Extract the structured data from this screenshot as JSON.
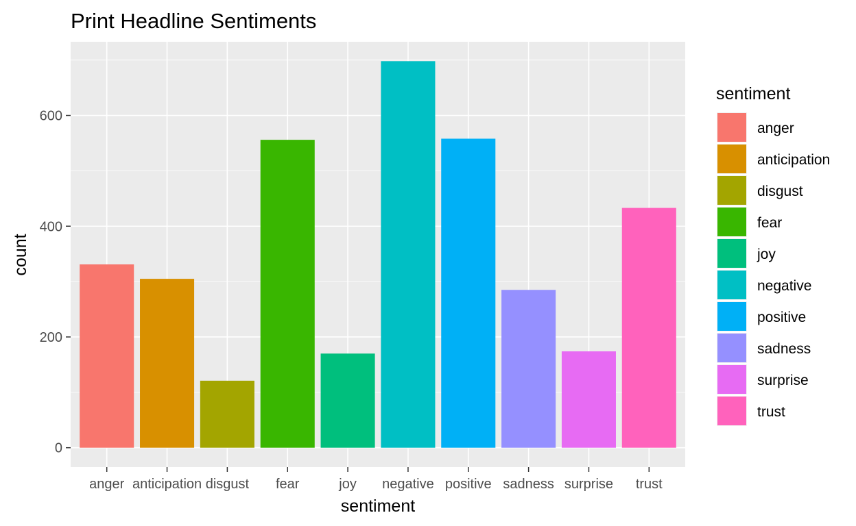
{
  "chart_data": {
    "type": "bar",
    "title": "Print Headline Sentiments",
    "xlabel": "sentiment",
    "ylabel": "count",
    "categories": [
      "anger",
      "anticipation",
      "disgust",
      "fear",
      "joy",
      "negative",
      "positive",
      "sadness",
      "surprise",
      "trust"
    ],
    "values": [
      331,
      305,
      121,
      556,
      170,
      698,
      558,
      285,
      174,
      433
    ],
    "colors": [
      "#F8766D",
      "#D89000",
      "#A3A500",
      "#39B600",
      "#00BF7D",
      "#00BFC4",
      "#00B0F6",
      "#9590FF",
      "#E76BF3",
      "#FF62BC"
    ],
    "ylim": [
      -35,
      733
    ],
    "yticks": [
      0,
      200,
      400,
      600
    ],
    "grid": true,
    "panel_background": "#EBEBEB",
    "legend": {
      "title": "sentiment",
      "placement": "right",
      "entries": [
        "anger",
        "anticipation",
        "disgust",
        "fear",
        "joy",
        "negative",
        "positive",
        "sadness",
        "surprise",
        "trust"
      ]
    }
  }
}
